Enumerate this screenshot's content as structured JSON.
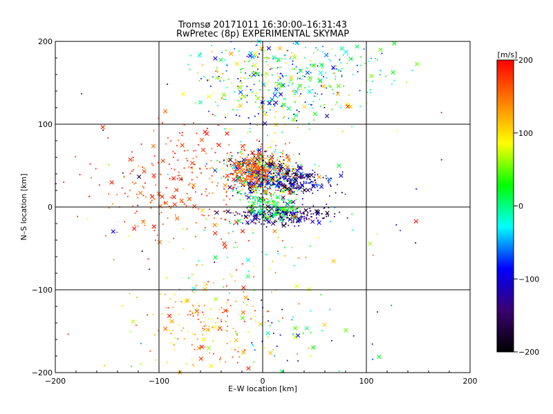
{
  "title_line1": "Tromsø 20171011 16:30:00–16:31:43",
  "title_line2": "RwPretec (8p) EXPERIMENTAL SKYMAP",
  "chart_data": {
    "type": "scatter",
    "xlabel": "E–W location [km]",
    "ylabel": "N–S location [km]",
    "xlim": [
      -200,
      200
    ],
    "ylim": [
      -200,
      200
    ],
    "xticks": [
      "−200",
      "−100",
      "0",
      "100",
      "200"
    ],
    "yticks": [
      "−200",
      "−100",
      "0",
      "100",
      "200"
    ],
    "grid": true,
    "colorbar": {
      "unit": "[m/s]",
      "range": [
        -200,
        200
      ],
      "ticks": [
        "200",
        "100",
        "0",
        "−100",
        "−200"
      ],
      "colors": [
        "#000000",
        "#3a0070",
        "#0000ff",
        "#00ffff",
        "#00ff00",
        "#ffff00",
        "#ff8000",
        "#ff0000"
      ]
    },
    "marker_types": [
      "point",
      "x"
    ],
    "clusters": [
      {
        "x": 0,
        "y": 40,
        "sx": 18,
        "sy": 14,
        "n": 520,
        "vmin": -200,
        "vmax": 200
      },
      {
        "x": -8,
        "y": 45,
        "sx": 12,
        "sy": 10,
        "n": 200,
        "vmin": 120,
        "vmax": 200
      },
      {
        "x": 30,
        "y": 30,
        "sx": 18,
        "sy": 8,
        "n": 220,
        "vmin": -200,
        "vmax": -60
      },
      {
        "x": 20,
        "y": -10,
        "sx": 22,
        "sy": 6,
        "n": 260,
        "vmin": -200,
        "vmax": -80
      },
      {
        "x": 10,
        "y": 0,
        "sx": 12,
        "sy": 8,
        "n": 140,
        "vmin": -20,
        "vmax": 60
      },
      {
        "x": 10,
        "y": 150,
        "sx": 35,
        "sy": 30,
        "n": 360,
        "vmin": -120,
        "vmax": 140
      },
      {
        "x": 70,
        "y": 160,
        "sx": 30,
        "sy": 25,
        "n": 110,
        "vmin": -80,
        "vmax": 60
      },
      {
        "x": -80,
        "y": 30,
        "sx": 40,
        "sy": 35,
        "n": 260,
        "vmin": 140,
        "vmax": 200
      },
      {
        "x": -60,
        "y": -140,
        "sx": 30,
        "sy": 30,
        "n": 180,
        "vmin": 60,
        "vmax": 200
      },
      {
        "x": -5,
        "y": -40,
        "sx": 40,
        "sy": 50,
        "n": 90,
        "vmin": -60,
        "vmax": 200
      },
      {
        "x": 20,
        "y": -150,
        "sx": 30,
        "sy": 25,
        "n": 50,
        "vmin": -120,
        "vmax": 120
      },
      {
        "x": 0,
        "y": 0,
        "sx": 120,
        "sy": 120,
        "n": 100,
        "vmin": -200,
        "vmax": 200
      }
    ]
  }
}
